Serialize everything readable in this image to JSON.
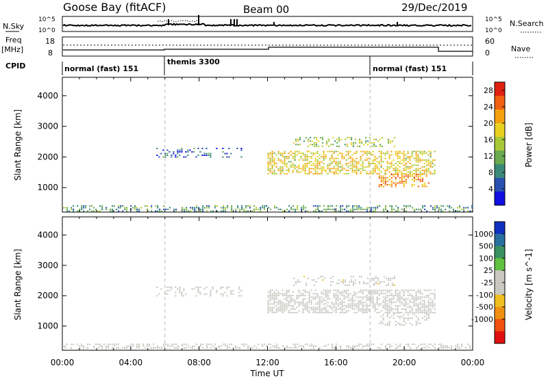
{
  "header": {
    "station": "Goose Bay (fitACF)",
    "beam": "Beam 00",
    "date": "29/Dec/2019"
  },
  "top_strip": {
    "nsky_label": "N.Sky",
    "nsky_ticks": [
      "10^5",
      "10^0"
    ],
    "nsearch_label": "N.Search",
    "nsearch_ticks": [
      "10^5",
      "10^0"
    ],
    "freq_label_1": "Freq",
    "freq_label_2": "[MHz]",
    "freq_ticks": [
      "18",
      "8"
    ],
    "nave_label": "Nave",
    "nave_ticks": [
      "60",
      "0"
    ],
    "cpid_label": "CPID",
    "modes": [
      {
        "label": "normal (fast) 151",
        "start_hour": 0
      },
      {
        "label": "themis 3300",
        "start_hour": 6
      },
      {
        "label": "normal (fast) 151",
        "start_hour": 18
      }
    ]
  },
  "x_axis": {
    "label": "Time UT",
    "ticks": [
      "00:00",
      "04:00",
      "08:00",
      "12:00",
      "16:00",
      "20:00",
      "00:00"
    ]
  },
  "chart_data": [
    {
      "type": "heatmap",
      "title": "",
      "ylabel": "Slant Range [km]",
      "xlabel": "Time UT",
      "xlim": [
        0,
        24
      ],
      "ylim": [
        200,
        4600
      ],
      "yticks": [
        1000,
        2000,
        3000,
        4000
      ],
      "colorbar": {
        "label": "Power [dB]",
        "ticks": [
          "4",
          "8",
          "12",
          "16",
          "20",
          "24",
          "28"
        ],
        "range": [
          0,
          30
        ],
        "colors": [
          "#1010e0",
          "#2850b0",
          "#3a8a78",
          "#6aaa50",
          "#a8c838",
          "#e8d020",
          "#f5a010",
          "#f06010",
          "#e02010"
        ]
      },
      "regions": [
        {
          "t0": 0.0,
          "t1": 24.0,
          "r0": 250,
          "r1": 420,
          "value": 10,
          "density": 0.45
        },
        {
          "t0": 5.5,
          "t1": 10.5,
          "r0": 2000,
          "r1": 2300,
          "value": 6,
          "density": 0.28
        },
        {
          "t0": 12.0,
          "t1": 21.8,
          "r0": 1450,
          "r1": 2200,
          "value": 18,
          "density": 0.55
        },
        {
          "t0": 13.5,
          "t1": 19.5,
          "r0": 2350,
          "r1": 2650,
          "value": 14,
          "density": 0.35
        },
        {
          "t0": 18.5,
          "t1": 21.5,
          "r0": 1050,
          "r1": 1450,
          "value": 22,
          "density": 0.45
        }
      ]
    },
    {
      "type": "heatmap",
      "title": "",
      "ylabel": "Slant Range [km]",
      "xlabel": "Time UT",
      "xlim": [
        0,
        24
      ],
      "ylim": [
        200,
        4600
      ],
      "yticks": [
        1000,
        2000,
        3000,
        4000
      ],
      "colorbar": {
        "label": "Velocity [m s^-1]",
        "ticks": [
          "1000",
          "500",
          "100",
          "25",
          "-25",
          "-100",
          "-500",
          "-1000"
        ],
        "range": [
          -1000,
          1000
        ],
        "colors": [
          "#1030c0",
          "#2870a0",
          "#389060",
          "#60c040",
          "#c8c8c0",
          "#c8c8c0",
          "#f0c020",
          "#f09010",
          "#f05010",
          "#e01010"
        ]
      },
      "regions": [
        {
          "t0": 0.0,
          "t1": 24.0,
          "r0": 250,
          "r1": 420,
          "value": -60,
          "density": 0.45
        },
        {
          "t0": 5.5,
          "t1": 10.5,
          "r0": 2000,
          "r1": 2300,
          "value": 0,
          "density": 0.28
        },
        {
          "t0": 12.0,
          "t1": 21.8,
          "r0": 1450,
          "r1": 2200,
          "value": 0,
          "density": 0.6
        },
        {
          "t0": 13.5,
          "t1": 19.5,
          "r0": 2350,
          "r1": 2650,
          "value": -150,
          "density": 0.35
        },
        {
          "t0": 18.5,
          "t1": 21.5,
          "r0": 1050,
          "r1": 1450,
          "value": -120,
          "density": 0.4
        }
      ]
    }
  ]
}
